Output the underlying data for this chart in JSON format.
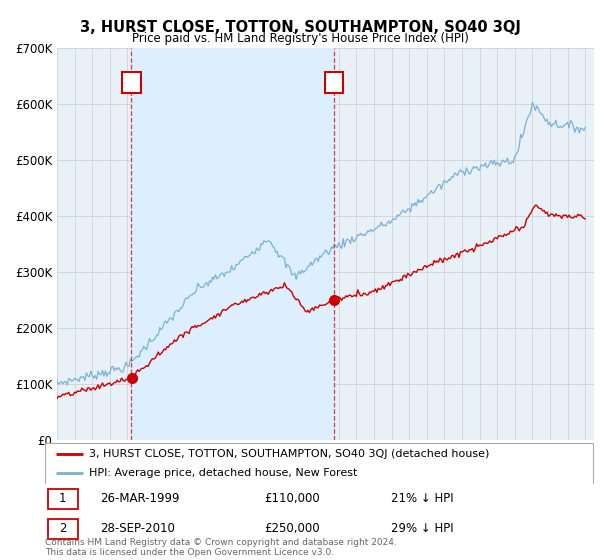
{
  "title": "3, HURST CLOSE, TOTTON, SOUTHAMPTON, SO40 3QJ",
  "subtitle": "Price paid vs. HM Land Registry's House Price Index (HPI)",
  "background_color": "#ffffff",
  "plot_bg_color": "#e8f0f8",
  "grid_color": "#cccccc",
  "ylim": [
    0,
    700000
  ],
  "yticks": [
    0,
    100000,
    200000,
    300000,
    400000,
    500000,
    600000,
    700000
  ],
  "ytick_labels": [
    "£0",
    "£100K",
    "£200K",
    "£300K",
    "£400K",
    "£500K",
    "£600K",
    "£700K"
  ],
  "x_start_year": 1995,
  "x_end_year": 2025,
  "marker1_year": 1999.23,
  "marker1_value": 110000,
  "marker2_year": 2010.75,
  "marker2_value": 250000,
  "hpi_color": "#7ab3d4",
  "sale_color": "#cc0000",
  "span_color": "#ddeeff",
  "vline_color": "#cc4444",
  "legend_line1": "3, HURST CLOSE, TOTTON, SOUTHAMPTON, SO40 3QJ (detached house)",
  "legend_line2": "HPI: Average price, detached house, New Forest",
  "table_row1_date": "26-MAR-1999",
  "table_row1_price": "£110,000",
  "table_row1_pct": "21% ↓ HPI",
  "table_row2_date": "28-SEP-2010",
  "table_row2_price": "£250,000",
  "table_row2_pct": "29% ↓ HPI",
  "footnote": "Contains HM Land Registry data © Crown copyright and database right 2024.\nThis data is licensed under the Open Government Licence v3.0."
}
